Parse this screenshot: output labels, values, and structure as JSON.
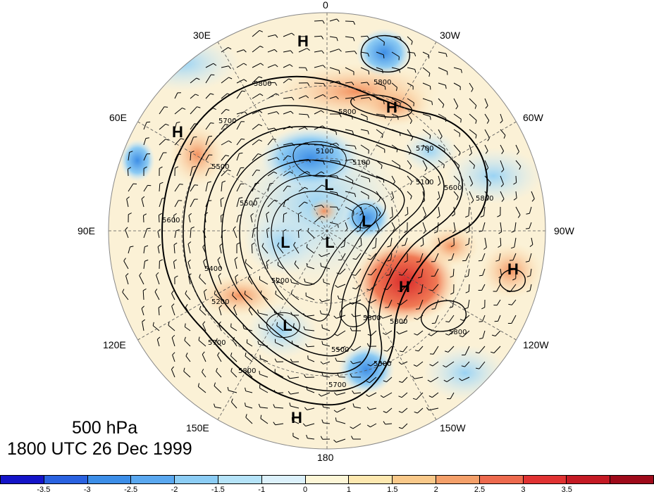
{
  "title": {
    "level": "500 hPa",
    "time": "1800 UTC 26 Dec 1999"
  },
  "longitude_labels": [
    "0",
    "30W",
    "60W",
    "90W",
    "120W",
    "150W",
    "180",
    "150E",
    "120E",
    "90E",
    "60E",
    "30E"
  ],
  "pressure_centers": [
    {
      "label": "H",
      "lon": "near 0/30E",
      "region": "north"
    },
    {
      "label": "H",
      "lon": "near 30W",
      "region": "north-east"
    },
    {
      "label": "H",
      "lon": "near 60E",
      "region": "west"
    },
    {
      "label": "L",
      "lon": "north of 90E",
      "region": "center"
    },
    {
      "label": "L",
      "lon": "north of 90E",
      "region": "center"
    },
    {
      "label": "L",
      "lon": "center",
      "region": "center"
    },
    {
      "label": "L",
      "lon": "near 90W",
      "region": "center"
    },
    {
      "label": "H",
      "lon": "near 105W",
      "region": "east"
    },
    {
      "label": "H",
      "lon": "near 100W",
      "region": "far east"
    },
    {
      "label": "L",
      "lon": "near 120E",
      "region": "south-west"
    },
    {
      "label": "H",
      "lon": "near 180",
      "region": "south"
    }
  ],
  "contour_labels": [
    "5100",
    "5200",
    "5300",
    "5400",
    "5500",
    "5600",
    "5700",
    "5800"
  ],
  "colorbar": {
    "colors": [
      "#1414c8",
      "#2a62e0",
      "#3c8ee8",
      "#5aa8f0",
      "#8ccdf5",
      "#b5e3f8",
      "#dcf1fb",
      "#fdf6d7",
      "#fde8b0",
      "#f9c98a",
      "#f4a06a",
      "#ed6a4e",
      "#e03232",
      "#c41a24",
      "#9e0a1a"
    ],
    "ticks": [
      "-3.5",
      "-3",
      "-2.5",
      "-2",
      "-1.5",
      "-1",
      "0",
      "1",
      "1.5",
      "2",
      "2.5",
      "3",
      "3.5"
    ]
  }
}
